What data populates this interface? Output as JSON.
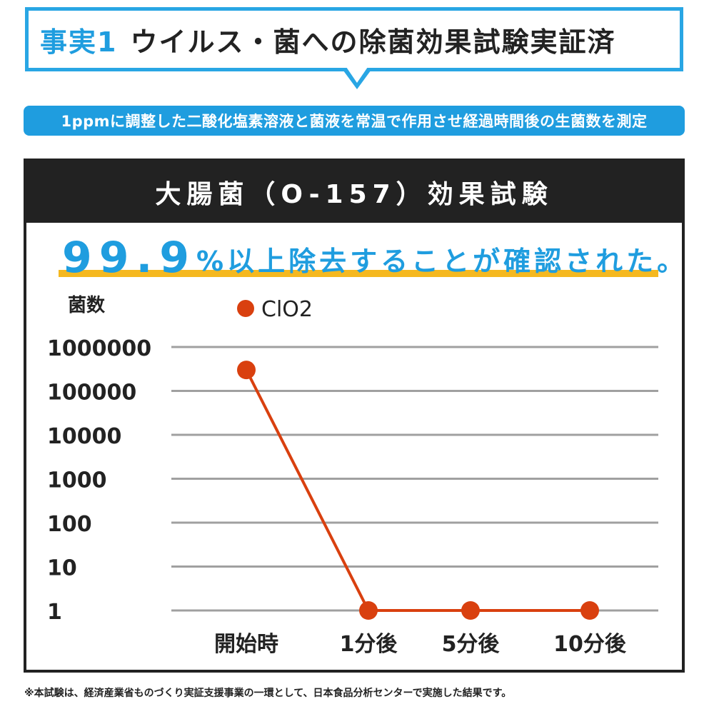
{
  "title": {
    "fact": "事実1",
    "main": "ウイルス・菌への除菌効果試験実証済"
  },
  "condition": "1ppmに調整した二酸化塩素溶液と菌液を常温で作用させ経過時間後の生菌数を測定",
  "panel": {
    "heading": "大腸菌（O-157）効果試験",
    "headline_number": "99.9",
    "headline_rest": "%以上除去することが確認された。"
  },
  "colors": {
    "accent": "#1f9ddf",
    "series": "#d9400f",
    "underline": "#f5b81f",
    "dark": "#222222"
  },
  "chart_data": {
    "type": "line",
    "ylabel": "菌数",
    "yscale": "log",
    "y_ticks": [
      {
        "value": 1000000,
        "label": "1000000"
      },
      {
        "value": 100000,
        "label": "100000"
      },
      {
        "value": 10000,
        "label": "10000"
      },
      {
        "value": 1000,
        "label": "1000"
      },
      {
        "value": 100,
        "label": "100"
      },
      {
        "value": 10,
        "label": "10"
      },
      {
        "value": 1,
        "label": "1"
      }
    ],
    "ylim": [
      1,
      1000000
    ],
    "grid": true,
    "legend_position": "top",
    "categories": [
      "開始時",
      "1分後",
      "5分後",
      "10分後"
    ],
    "series": [
      {
        "name": "ClO2",
        "values": [
          300000,
          1,
          1,
          1
        ],
        "color": "#d9400f"
      }
    ]
  },
  "footnote": "※本試験は、経済産業省ものづくり実証支援事業の一環として、日本食品分析センターで実施した結果です。"
}
